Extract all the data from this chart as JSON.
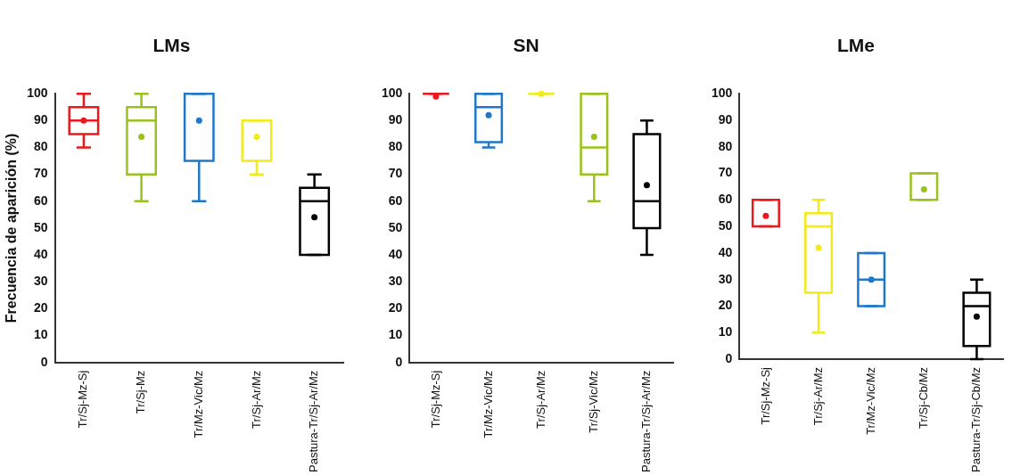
{
  "chart_data": [
    {
      "type": "box",
      "title": "LMs",
      "ylabel": "Frecuencia de aparición (%)",
      "categories": [
        "Tr/Sj-Mz-Sj",
        "Tr/Sj-Mz",
        "Tr/Mz-Vic/Mz",
        "Tr/Sj-Ar/Mz",
        "Pastura-Tr/Sj-Ar/Mz"
      ],
      "colors": [
        "#e8191f",
        "#99c31c",
        "#1f78c8",
        "#f2ea1a",
        "#000000"
      ],
      "boxes": [
        {
          "low": 80,
          "q1": 85,
          "median": 90,
          "q3": 95,
          "high": 100,
          "mean": 90
        },
        {
          "low": 60,
          "q1": 70,
          "median": 90,
          "q3": 95,
          "high": 100,
          "mean": 84
        },
        {
          "low": 60,
          "q1": 75,
          "median": 75,
          "q3": 100,
          "high": 100,
          "mean": 90
        },
        {
          "low": 70,
          "q1": 75,
          "median": 75,
          "q3": 90,
          "high": 90,
          "mean": 84
        },
        {
          "low": 40,
          "q1": 40,
          "median": 60,
          "q3": 65,
          "high": 70,
          "mean": 54
        }
      ],
      "ylim": [
        0,
        100
      ],
      "yticks": [
        0,
        10,
        20,
        30,
        40,
        50,
        60,
        70,
        80,
        90,
        100
      ],
      "grid": false
    },
    {
      "type": "box",
      "title": "SN",
      "categories": [
        "Tr/Sj-Mz-Sj",
        "Tr/Mz-Vic/Mz",
        "Tr/Sj-Ar/Mz",
        "Tr/Sj-Vic/Mz",
        "Pastura-Tr/Sj-Ar/Mz"
      ],
      "colors": [
        "#e8191f",
        "#1f78c8",
        "#f2ea1a",
        "#99c31c",
        "#000000"
      ],
      "boxes": [
        {
          "low": 100,
          "q1": 100,
          "median": 100,
          "q3": 100,
          "high": 100,
          "mean": 99
        },
        {
          "low": 80,
          "q1": 82,
          "median": 95,
          "q3": 100,
          "high": 100,
          "mean": 92
        },
        {
          "low": 100,
          "q1": 100,
          "median": 100,
          "q3": 100,
          "high": 100,
          "mean": 100
        },
        {
          "low": 60,
          "q1": 70,
          "median": 80,
          "q3": 100,
          "high": 100,
          "mean": 84
        },
        {
          "low": 40,
          "q1": 50,
          "median": 60,
          "q3": 85,
          "high": 90,
          "mean": 66
        }
      ],
      "ylim": [
        0,
        100
      ],
      "yticks": [
        0,
        10,
        20,
        30,
        40,
        50,
        60,
        70,
        80,
        90,
        100
      ],
      "grid": false
    },
    {
      "type": "box",
      "title": "LMe",
      "categories": [
        "Tr/Sj-Mz-Sj",
        "Tr/Sj-Ar/Mz",
        "Tr/Mz-Vic/Mz",
        "Tr/Sj-Cb/Mz",
        "Pastura-Tr/Sj-Cb/Mz"
      ],
      "colors": [
        "#e8191f",
        "#f2ea1a",
        "#1f78c8",
        "#99c31c",
        "#000000"
      ],
      "boxes": [
        {
          "low": 50,
          "q1": 50,
          "median": 50,
          "q3": 60,
          "high": 60,
          "mean": 54
        },
        {
          "low": 10,
          "q1": 25,
          "median": 50,
          "q3": 55,
          "high": 60,
          "mean": 42
        },
        {
          "low": 20,
          "q1": 20,
          "median": 30,
          "q3": 40,
          "high": 40,
          "mean": 30
        },
        {
          "low": 60,
          "q1": 60,
          "median": 60,
          "q3": 70,
          "high": 70,
          "mean": 64
        },
        {
          "low": 0,
          "q1": 5,
          "median": 20,
          "q3": 25,
          "high": 30,
          "mean": 16
        }
      ],
      "ylim": [
        0,
        100
      ],
      "yticks": [
        0,
        10,
        20,
        30,
        40,
        50,
        60,
        70,
        80,
        90,
        100
      ],
      "grid": false
    }
  ]
}
